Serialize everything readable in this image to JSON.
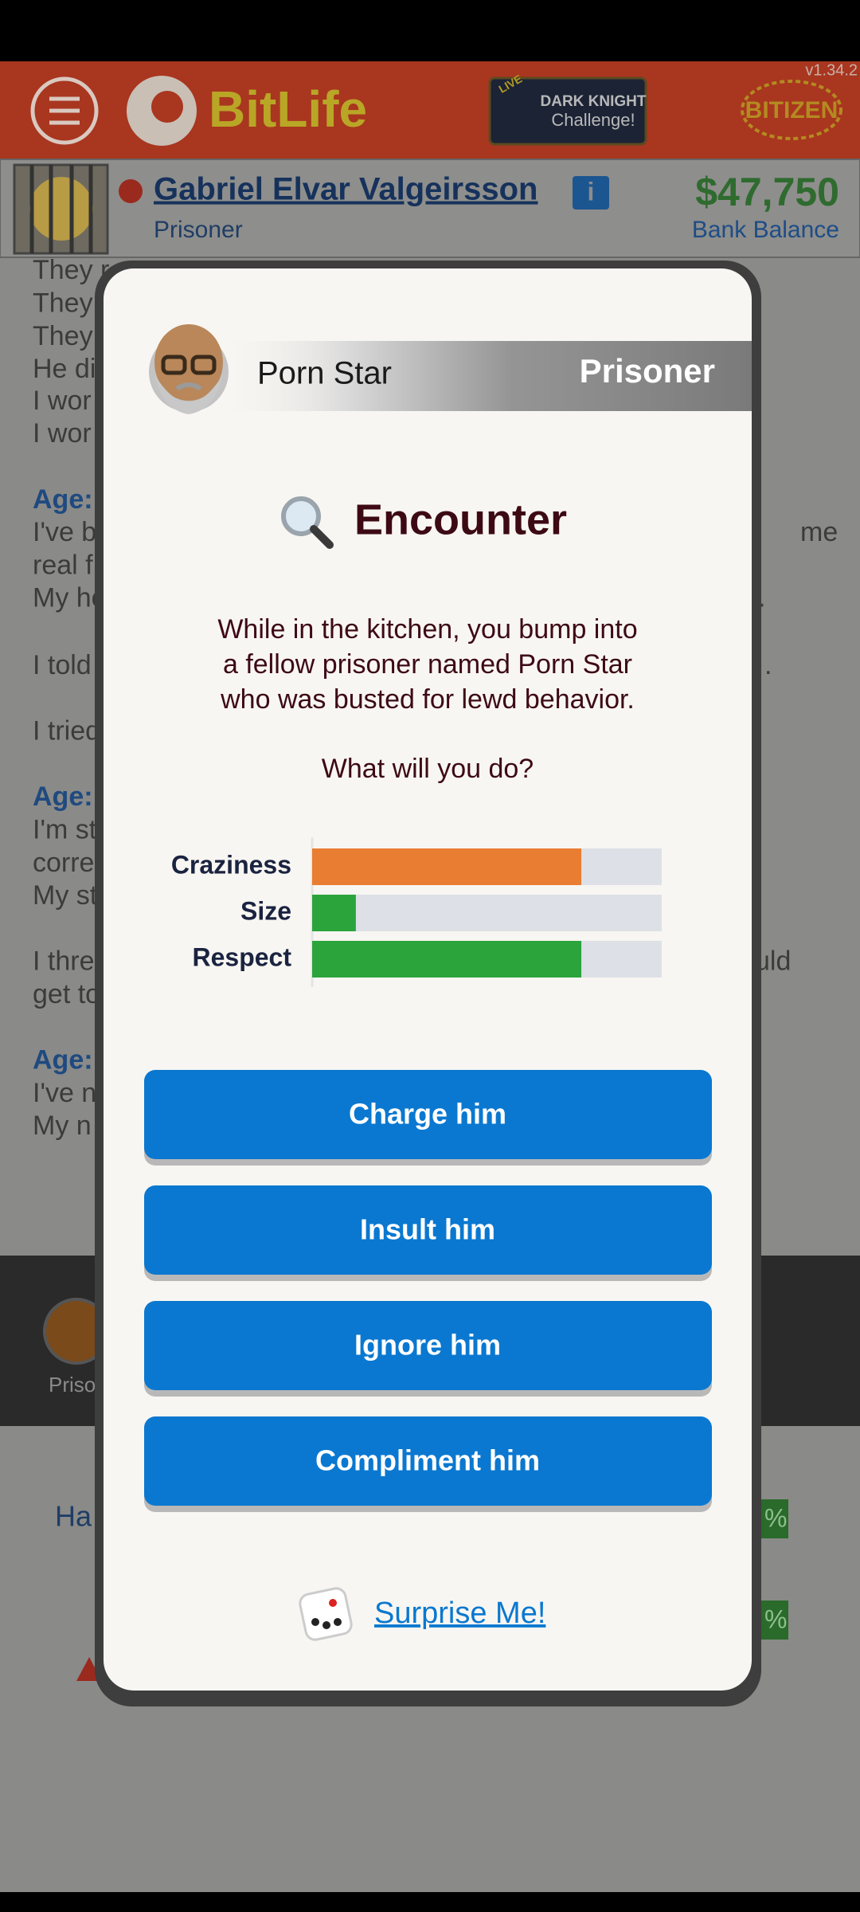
{
  "header": {
    "version": "v1.34.2",
    "logo": "BitLife",
    "challenge_tag": "LIVE",
    "challenge_title": "DARK KNIGHT",
    "challenge_subtitle": "Challenge!",
    "bitizen": "BITIZEN"
  },
  "profile": {
    "name": "Gabriel Elvar Valgeirsson",
    "status": "Prisoner",
    "balance": "$47,750",
    "balance_label": "Bank Balance"
  },
  "log": {
    "left": [
      "They r",
      "They",
      "They",
      "He di",
      "I wor",
      "I wor",
      "Age:",
      "I've b",
      "real f",
      "My ho",
      "I told",
      "I tried",
      "Age:",
      "I'm st",
      "corre",
      "My st",
      "I thre",
      "get to",
      "Age:",
      "I've n",
      "My n"
    ],
    "right": [
      "me",
      ".",
      ".",
      "uld"
    ]
  },
  "bottom": {
    "tab_label": "Priso",
    "row_label": "Ha",
    "percents": [
      "%",
      "%"
    ]
  },
  "modal": {
    "person_name": "Porn Star",
    "person_role": "Prisoner",
    "title": "Encounter",
    "description": [
      "While in the kitchen, you bump into",
      "a fellow prisoner named Porn Star",
      "who was busted for lewd behavior."
    ],
    "question": "What will you do?",
    "stats": [
      {
        "label": "Craziness",
        "value": 0.77,
        "color": "#e97d32"
      },
      {
        "label": "Size",
        "value": 0.125,
        "color": "#2aa43b"
      },
      {
        "label": "Respect",
        "value": 0.77,
        "color": "#2aa43b"
      }
    ],
    "buttons": [
      "Charge him",
      "Insult him",
      "Ignore him",
      "Compliment him"
    ],
    "surprise": "Surprise Me!"
  }
}
